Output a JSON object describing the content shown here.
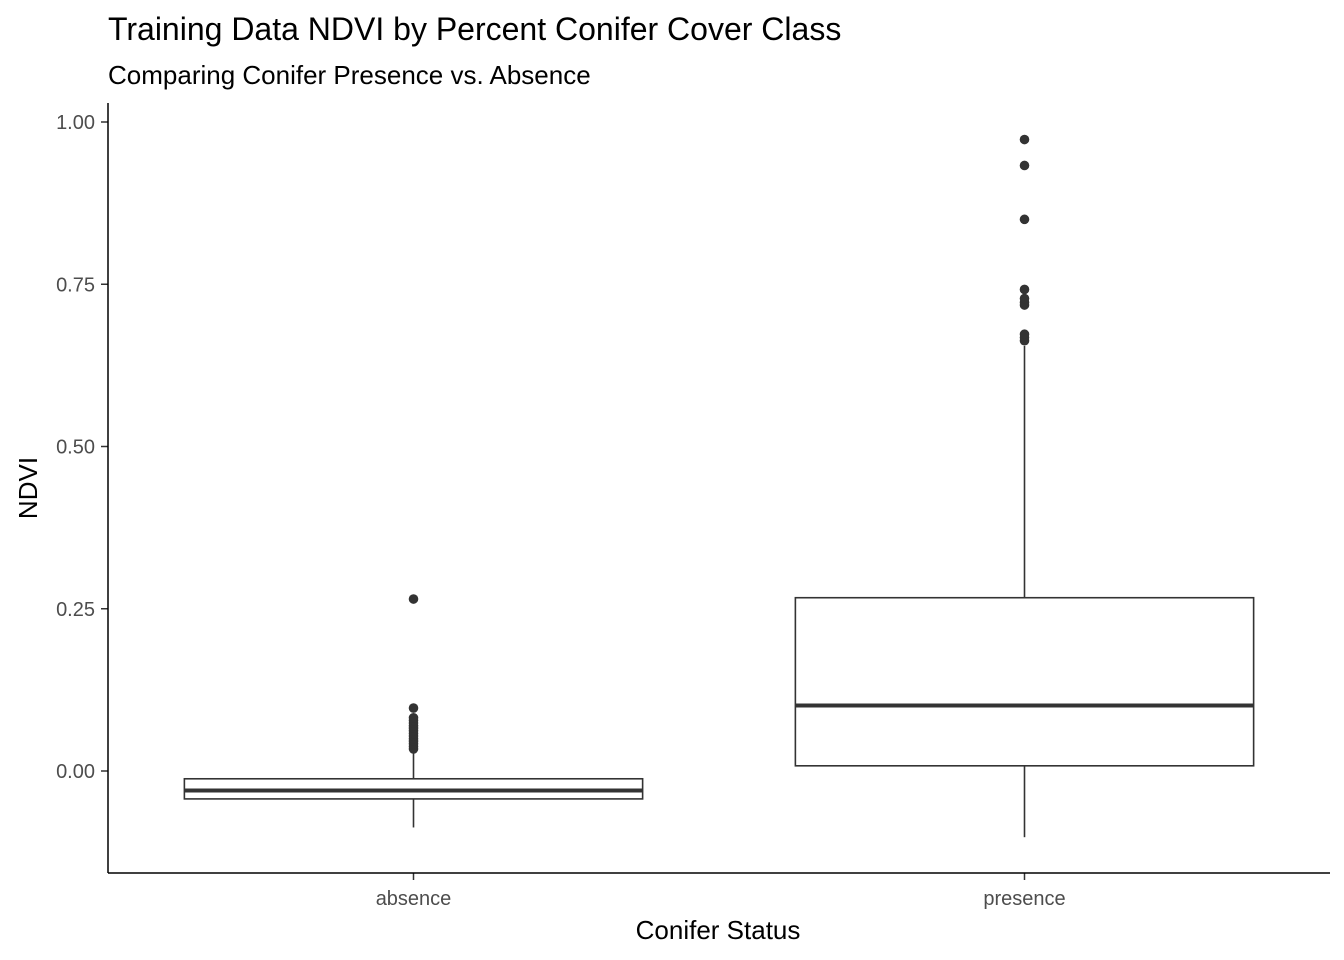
{
  "chart_data": {
    "type": "boxplot",
    "title": "Training Data NDVI by Percent Conifer Cover Class",
    "subtitle": "Comparing Conifer Presence vs. Absence",
    "xlabel": "Conifer Status",
    "ylabel": "NDVI",
    "ylim": [
      -0.155,
      1.02
    ],
    "yticks": [
      0.0,
      0.25,
      0.5,
      0.75,
      1.0
    ],
    "ytick_labels": [
      "0.00",
      "0.25",
      "0.50",
      "0.75",
      "1.00"
    ],
    "grid": false,
    "categories": [
      "absence",
      "presence"
    ],
    "boxes": [
      {
        "category": "absence",
        "whisker_low": -0.087,
        "q1": -0.043,
        "median": -0.03,
        "q3": -0.012,
        "whisker_high": 0.031,
        "outliers": [
          0.034,
          0.038,
          0.042,
          0.046,
          0.05,
          0.054,
          0.058,
          0.062,
          0.066,
          0.07,
          0.074,
          0.078,
          0.082,
          0.097,
          0.265
        ]
      },
      {
        "category": "presence",
        "whisker_low": -0.102,
        "q1": 0.008,
        "median": 0.101,
        "q3": 0.267,
        "whisker_high": 0.655,
        "outliers": [
          0.663,
          0.668,
          0.673,
          0.718,
          0.722,
          0.728,
          0.742,
          0.85,
          0.933,
          0.973
        ]
      }
    ],
    "colors": {
      "box_stroke": "#333333",
      "outlier": "#333333",
      "axis": "#000000",
      "tick_label": "#4d4d4d"
    }
  }
}
